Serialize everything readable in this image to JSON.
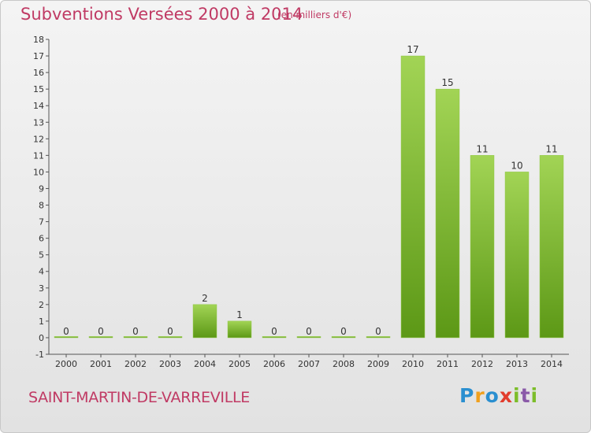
{
  "chart_data": {
    "type": "bar",
    "title": "Subventions Versées 2000 à 2014",
    "subtitle": "(en milliers d'€)",
    "categories": [
      "2000",
      "2001",
      "2002",
      "2003",
      "2004",
      "2005",
      "2006",
      "2007",
      "2008",
      "2009",
      "2010",
      "2011",
      "2012",
      "2013",
      "2014"
    ],
    "values": [
      0,
      0,
      0,
      0,
      2,
      1,
      0,
      0,
      0,
      0,
      17,
      15,
      11,
      10,
      11
    ],
    "ylim": [
      -1,
      18
    ],
    "yticks": [
      -1,
      0,
      1,
      2,
      3,
      4,
      5,
      6,
      7,
      8,
      9,
      10,
      11,
      12,
      13,
      14,
      15,
      16,
      17,
      18
    ],
    "xlabel": "",
    "ylabel": "",
    "grid": false,
    "bar_color_top": "#9cd14c",
    "bar_color_bottom": "#5e9a18"
  },
  "footer": {
    "commune": "SAINT-MARTIN-DE-VARREVILLE",
    "logo_parts": [
      "P",
      "r",
      "o",
      "x",
      "i",
      "t",
      "i"
    ]
  },
  "colors": {
    "accent": "#c03a64"
  }
}
